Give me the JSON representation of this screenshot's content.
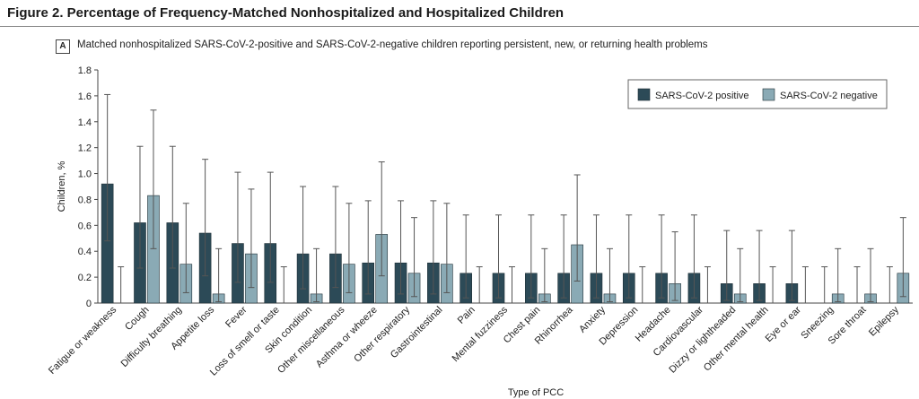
{
  "figure": {
    "title": "Figure 2. Percentage of Frequency-Matched Nonhospitalized and Hospitalized Children",
    "panel_label": "A",
    "panel_title": "Matched nonhospitalized SARS-CoV-2-positive and SARS-CoV-2-negative children reporting persistent, new, or returning health problems"
  },
  "colors": {
    "positive": "#2c4a57",
    "negative": "#8aaab5",
    "error": "#555555"
  },
  "chart_data": {
    "type": "bar",
    "xlabel": "Type of PCC",
    "ylabel": "Children, %",
    "ylim": [
      0,
      1.8
    ],
    "yticks": [
      "0",
      "0.2",
      "0.4",
      "0.6",
      "0.8",
      "1.0",
      "1.2",
      "1.4",
      "1.6",
      "1.8"
    ],
    "grid": false,
    "legend_position": "top-right",
    "categories": [
      "Fatigue or weakness",
      "Cough",
      "Difficulty breathing",
      "Appetite loss",
      "Fever",
      "Loss of smell or taste",
      "Skin condition",
      "Other miscellaneous",
      "Asthma or wheeze",
      "Other respiratory",
      "Gastrointestinal",
      "Pain",
      "Mental fuzziness",
      "Chest pain",
      "Rhinorrhea",
      "Anxiety",
      "Depression",
      "Headache",
      "Cardiovascular",
      "Dizzy or lightheaded",
      "Other mental health",
      "Eye or ear",
      "Sneezing",
      "Sore throat",
      "Epilepsy"
    ],
    "series": [
      {
        "name": "SARS-CoV-2 positive",
        "values": [
          0.92,
          0.62,
          0.62,
          0.54,
          0.46,
          0.46,
          0.38,
          0.38,
          0.31,
          0.31,
          0.31,
          0.23,
          0.23,
          0.23,
          0.23,
          0.23,
          0.23,
          0.23,
          0.23,
          0.15,
          0.15,
          0.15,
          0,
          0,
          0
        ],
        "ci_low": [
          0.48,
          0.27,
          0.27,
          0.21,
          0.16,
          0.16,
          0.11,
          0.12,
          0.07,
          0.07,
          0.07,
          0.04,
          0.04,
          0.04,
          0.04,
          0.04,
          0.04,
          0.04,
          0.04,
          0.02,
          0.02,
          0.02,
          0,
          0,
          0
        ],
        "ci_high": [
          1.61,
          1.21,
          1.21,
          1.11,
          1.01,
          1.01,
          0.9,
          0.9,
          0.79,
          0.79,
          0.79,
          0.68,
          0.68,
          0.68,
          0.68,
          0.68,
          0.68,
          0.68,
          0.68,
          0.56,
          0.56,
          0.56,
          0.28,
          0.28,
          0.28
        ]
      },
      {
        "name": "SARS-CoV-2 negative",
        "values": [
          0,
          0.83,
          0.3,
          0.07,
          0.38,
          0,
          0.07,
          0.3,
          0.53,
          0.23,
          0.3,
          0,
          0,
          0.07,
          0.45,
          0.07,
          0,
          0.15,
          0,
          0.07,
          0,
          0,
          0.07,
          0.07,
          0.23
        ],
        "ci_low": [
          0,
          0.42,
          0.08,
          0.01,
          0.12,
          0,
          0.01,
          0.08,
          0.21,
          0.05,
          0.08,
          0,
          0,
          0.01,
          0.17,
          0.01,
          0,
          0.02,
          0,
          0.01,
          0,
          0,
          0.01,
          0.01,
          0.05
        ],
        "ci_high": [
          0.28,
          1.49,
          0.77,
          0.42,
          0.88,
          0.28,
          0.42,
          0.77,
          1.09,
          0.66,
          0.77,
          0.28,
          0.28,
          0.42,
          0.99,
          0.42,
          0.28,
          0.55,
          0.28,
          0.42,
          0.28,
          0.28,
          0.42,
          0.42,
          0.66
        ]
      }
    ]
  }
}
